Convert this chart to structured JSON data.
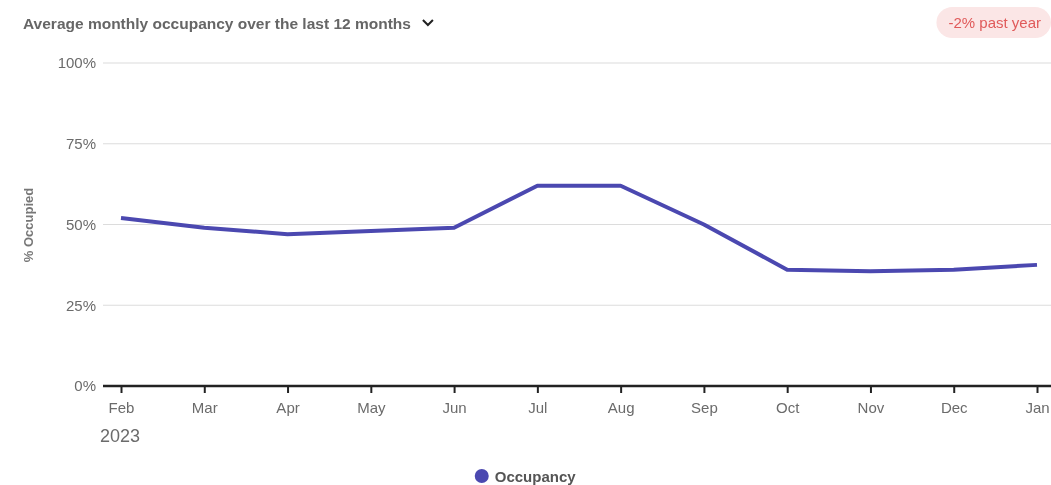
{
  "chart_data": {
    "type": "line",
    "title": "Average monthly occupancy over the last 12 months",
    "ylabel": "% Occupied",
    "categories": [
      "Feb",
      "Mar",
      "Apr",
      "May",
      "Jun",
      "Jul",
      "Aug",
      "Sep",
      "Oct",
      "Nov",
      "Dec",
      "Jan"
    ],
    "series": [
      {
        "name": "Occupancy",
        "color": "#4b48b0",
        "values": [
          52,
          49,
          47,
          48,
          49,
          62,
          62,
          50,
          36,
          35.5,
          36,
          37.5
        ]
      }
    ],
    "ylim": [
      0,
      100
    ],
    "yticks": [
      {
        "value": 0,
        "label": "0%"
      },
      {
        "value": 25,
        "label": "25%"
      },
      {
        "value": 50,
        "label": "50%"
      },
      {
        "value": 75,
        "label": "75%"
      },
      {
        "value": 100,
        "label": "100%"
      }
    ],
    "grid": "y",
    "legend": "bottom",
    "marker": "none",
    "line_style": "solid",
    "annotations": [
      "-2% past year",
      "2023"
    ]
  }
}
